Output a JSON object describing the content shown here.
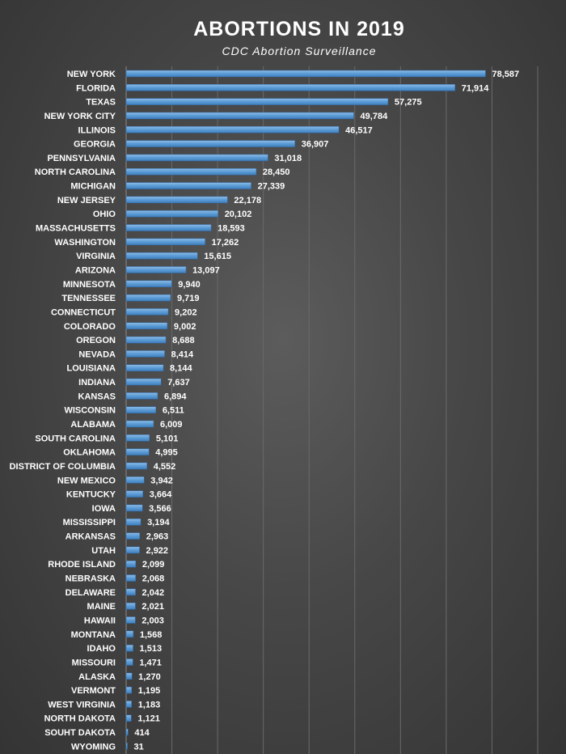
{
  "chart_data": {
    "type": "bar",
    "orientation": "horizontal",
    "title": "ABORTIONS IN 2019",
    "subtitle": "CDC Abortion Surveillance",
    "xlim": [
      0,
      90000
    ],
    "grid": true,
    "bar_color": "#5b9bd5",
    "categories": [
      "NEW YORK",
      "FLORIDA",
      "TEXAS",
      "NEW YORK CITY",
      "ILLINOIS",
      "GEORGIA",
      "PENNSYLVANIA",
      "NORTH CAROLINA",
      "MICHIGAN",
      "NEW JERSEY",
      "OHIO",
      "MASSACHUSETTS",
      "WASHINGTON",
      "VIRGINIA",
      "ARIZONA",
      "MINNESOTA",
      "TENNESSEE",
      "CONNECTICUT",
      "COLORADO",
      "OREGON",
      "NEVADA",
      "LOUISIANA",
      "INDIANA",
      "KANSAS",
      "WISCONSIN",
      "ALABAMA",
      "SOUTH CAROLINA",
      "OKLAHOMA",
      "DISTRICT OF COLUMBIA",
      "NEW MEXICO",
      "KENTUCKY",
      "IOWA",
      "MISSISSIPPI",
      "ARKANSAS",
      "UTAH",
      "RHODE ISLAND",
      "NEBRASKA",
      "DELAWARE",
      "MAINE",
      "HAWAII",
      "MONTANA",
      "IDAHO",
      "MISSOURI",
      "ALASKA",
      "VERMONT",
      "WEST VIRGINIA",
      "NORTH DAKOTA",
      "SOUHT DAKOTA",
      "WYOMING"
    ],
    "values": [
      78587,
      71914,
      57275,
      49784,
      46517,
      36907,
      31018,
      28450,
      27339,
      22178,
      20102,
      18593,
      17262,
      15615,
      13097,
      9940,
      9719,
      9202,
      9002,
      8688,
      8414,
      8144,
      7637,
      6894,
      6511,
      6009,
      5101,
      4995,
      4552,
      3942,
      3664,
      3566,
      3194,
      2963,
      2922,
      2099,
      2068,
      2042,
      2021,
      2003,
      1568,
      1513,
      1471,
      1270,
      1195,
      1183,
      1121,
      414,
      31
    ],
    "value_labels": [
      "78,587",
      "71,914",
      "57,275",
      "49,784",
      "46,517",
      "36,907",
      "31,018",
      "28,450",
      "27,339",
      "22,178",
      "20,102",
      "18,593",
      "17,262",
      "15,615",
      "13,097",
      "9,940",
      "9,719",
      "9,202",
      "9,002",
      "8,688",
      "8,414",
      "8,144",
      "7,637",
      "6,894",
      "6,511",
      "6,009",
      "5,101",
      "4,995",
      "4,552",
      "3,942",
      "3,664",
      "3,566",
      "3,194",
      "2,963",
      "2,922",
      "2,099",
      "2,068",
      "2,042",
      "2,021",
      "2,003",
      "1,568",
      "1,513",
      "1,471",
      "1,270",
      "1,195",
      "1,183",
      "1,121",
      "414",
      "31"
    ]
  }
}
